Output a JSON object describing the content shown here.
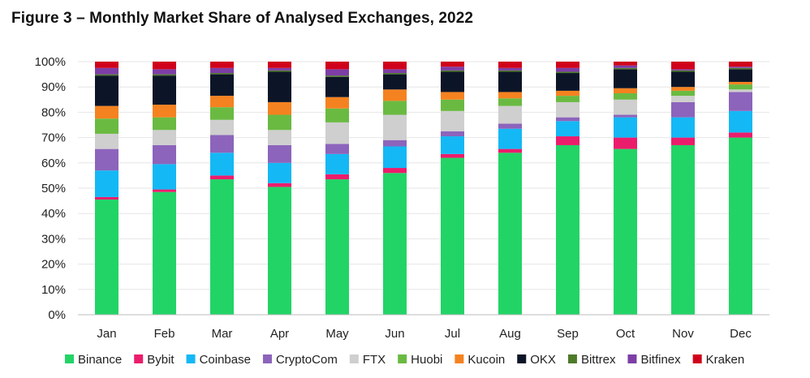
{
  "figure_title": "Figure 3 – Monthly Market Share of Analysed Exchanges, 2022",
  "chart_data": {
    "type": "bar",
    "stacked": true,
    "title": "Figure 3 – Monthly Market Share of Analysed Exchanges, 2022",
    "xlabel": "",
    "ylabel": "",
    "ylim": [
      0,
      100
    ],
    "yticks": [
      "0%",
      "10%",
      "20%",
      "30%",
      "40%",
      "50%",
      "60%",
      "70%",
      "80%",
      "90%",
      "100%"
    ],
    "categories": [
      "Jan",
      "Feb",
      "Mar",
      "Apr",
      "May",
      "Jun",
      "Jul",
      "Aug",
      "Sep",
      "Oct",
      "Nov",
      "Dec"
    ],
    "legend_position": "bottom",
    "series": [
      {
        "name": "Binance",
        "color": "#22d466",
        "values": [
          45.5,
          48.5,
          53.5,
          50.5,
          53.5,
          56.0,
          62.0,
          64.0,
          67.0,
          65.5,
          67.0,
          70.0
        ]
      },
      {
        "name": "Bybit",
        "color": "#ec1c6c",
        "values": [
          1.0,
          1.0,
          1.5,
          1.5,
          2.0,
          2.0,
          1.5,
          1.5,
          3.5,
          4.5,
          3.0,
          2.0
        ]
      },
      {
        "name": "Coinbase",
        "color": "#14b8f5",
        "values": [
          10.5,
          10.0,
          9.0,
          8.0,
          8.0,
          8.5,
          7.0,
          8.0,
          6.0,
          8.0,
          8.0,
          8.5
        ]
      },
      {
        "name": "CryptoCom",
        "color": "#8c64bc",
        "values": [
          8.5,
          7.5,
          7.0,
          7.0,
          4.0,
          2.5,
          2.0,
          2.0,
          1.5,
          1.0,
          6.0,
          7.5
        ]
      },
      {
        "name": "FTX",
        "color": "#cfcfcf",
        "values": [
          6.0,
          6.0,
          6.0,
          6.0,
          8.5,
          10.0,
          8.0,
          7.0,
          6.0,
          6.0,
          2.5,
          1.0
        ]
      },
      {
        "name": "Huobi",
        "color": "#6aba42",
        "values": [
          6.0,
          5.0,
          5.0,
          6.0,
          5.5,
          5.5,
          4.5,
          3.0,
          2.5,
          2.5,
          2.0,
          2.0
        ]
      },
      {
        "name": "Kucoin",
        "color": "#f58220",
        "values": [
          5.0,
          5.0,
          4.5,
          5.0,
          4.5,
          4.5,
          3.0,
          2.5,
          2.0,
          2.0,
          1.5,
          1.0
        ]
      },
      {
        "name": "OKX",
        "color": "#0c1528",
        "values": [
          12.0,
          11.5,
          8.5,
          12.0,
          8.0,
          6.0,
          8.0,
          8.0,
          7.0,
          7.5,
          6.0,
          5.0
        ]
      },
      {
        "name": "Bittrex",
        "color": "#4e7a2a",
        "values": [
          0.5,
          0.5,
          0.5,
          0.5,
          0.5,
          0.5,
          0.5,
          0.5,
          0.5,
          0.5,
          0.5,
          0.5
        ]
      },
      {
        "name": "Bitfinex",
        "color": "#7d3ea6",
        "values": [
          2.5,
          2.0,
          2.0,
          1.0,
          2.5,
          1.5,
          1.5,
          1.0,
          1.5,
          1.0,
          0.5,
          0.5
        ]
      },
      {
        "name": "Kraken",
        "color": "#d0021b",
        "values": [
          2.5,
          3.0,
          2.5,
          2.5,
          3.0,
          3.0,
          2.0,
          2.5,
          2.5,
          1.5,
          3.0,
          2.0
        ]
      }
    ]
  }
}
